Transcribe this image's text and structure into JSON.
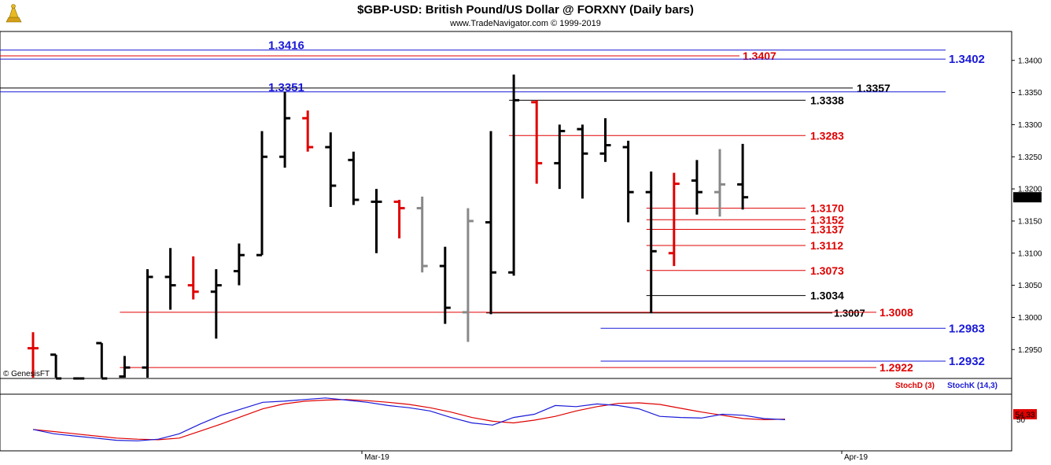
{
  "chart_data": {
    "type": "bar",
    "title": "$GBP-USD:  British Pound/US Dollar @ FORXNY  (Daily bars)",
    "subtitle": "www.TradeNavigator.com © 1999-2019",
    "watermark": "© GenesisFT",
    "x_labels": [
      "Mar-19",
      "Apr-19"
    ],
    "y_ticks": [
      "1.2950",
      "1.3000",
      "1.3050",
      "1.3100",
      "1.3150",
      "1.3200",
      "1.3250",
      "1.3300",
      "1.3350",
      "1.3400"
    ],
    "ylim": [
      1.2905,
      1.3445
    ],
    "last_price": "1.3187",
    "colors": {
      "up_close": "#000000",
      "red_bar": "#e00000",
      "gray_bar": "#888888",
      "blue_level": "#1a1ad8",
      "red_level": "#e00000",
      "black_level": "#000000"
    },
    "bars": [
      {
        "o": 1.2952,
        "h": 1.2977,
        "l": 1.2905,
        "c": 1.2952,
        "color": "red"
      },
      {
        "o": 1.2942,
        "h": 1.2942,
        "l": 1.2905,
        "c": 1.2905,
        "color": "black"
      },
      {
        "o": 1.2905,
        "h": 1.2905,
        "l": 1.2905,
        "c": 1.2905,
        "color": "black"
      },
      {
        "o": 1.296,
        "h": 1.296,
        "l": 1.2905,
        "c": 1.2905,
        "color": "black"
      },
      {
        "o": 1.2908,
        "h": 1.294,
        "l": 1.2905,
        "c": 1.2922,
        "color": "black"
      },
      {
        "o": 1.2922,
        "h": 1.3075,
        "l": 1.2905,
        "c": 1.3063,
        "color": "black"
      },
      {
        "o": 1.3063,
        "h": 1.3108,
        "l": 1.3012,
        "c": 1.305,
        "color": "black"
      },
      {
        "o": 1.305,
        "h": 1.3095,
        "l": 1.3028,
        "c": 1.304,
        "color": "red"
      },
      {
        "o": 1.304,
        "h": 1.3075,
        "l": 1.2967,
        "c": 1.305,
        "color": "black"
      },
      {
        "o": 1.3072,
        "h": 1.3115,
        "l": 1.305,
        "c": 1.3097,
        "color": "black"
      },
      {
        "o": 1.3097,
        "h": 1.329,
        "l": 1.3097,
        "c": 1.325,
        "color": "black"
      },
      {
        "o": 1.325,
        "h": 1.3351,
        "l": 1.3233,
        "c": 1.331,
        "color": "black"
      },
      {
        "o": 1.331,
        "h": 1.3322,
        "l": 1.3258,
        "c": 1.3265,
        "color": "red"
      },
      {
        "o": 1.3265,
        "h": 1.3288,
        "l": 1.3172,
        "c": 1.3205,
        "color": "black"
      },
      {
        "o": 1.3245,
        "h": 1.3258,
        "l": 1.3175,
        "c": 1.3183,
        "color": "black"
      },
      {
        "o": 1.318,
        "h": 1.32,
        "l": 1.31,
        "c": 1.318,
        "color": "black"
      },
      {
        "o": 1.318,
        "h": 1.3183,
        "l": 1.3123,
        "c": 1.317,
        "color": "red"
      },
      {
        "o": 1.317,
        "h": 1.3188,
        "l": 1.307,
        "c": 1.308,
        "color": "gray"
      },
      {
        "o": 1.308,
        "h": 1.311,
        "l": 1.299,
        "c": 1.3015,
        "color": "black"
      },
      {
        "o": 1.3008,
        "h": 1.317,
        "l": 1.2962,
        "c": 1.315,
        "color": "gray"
      },
      {
        "o": 1.3148,
        "h": 1.329,
        "l": 1.3005,
        "c": 1.307,
        "color": "black"
      },
      {
        "o": 1.307,
        "h": 1.3378,
        "l": 1.3065,
        "c": 1.3338,
        "color": "black"
      },
      {
        "o": 1.3335,
        "h": 1.3338,
        "l": 1.3208,
        "c": 1.324,
        "color": "red"
      },
      {
        "o": 1.324,
        "h": 1.33,
        "l": 1.32,
        "c": 1.329,
        "color": "black"
      },
      {
        "o": 1.3293,
        "h": 1.33,
        "l": 1.3185,
        "c": 1.3255,
        "color": "black"
      },
      {
        "o": 1.3255,
        "h": 1.331,
        "l": 1.3242,
        "c": 1.3268,
        "color": "black"
      },
      {
        "o": 1.3265,
        "h": 1.3275,
        "l": 1.3148,
        "c": 1.3195,
        "color": "black"
      },
      {
        "o": 1.3195,
        "h": 1.3227,
        "l": 1.3007,
        "c": 1.3103,
        "color": "black"
      },
      {
        "o": 1.31,
        "h": 1.3225,
        "l": 1.308,
        "c": 1.3208,
        "color": "red"
      },
      {
        "o": 1.3213,
        "h": 1.3245,
        "l": 1.316,
        "c": 1.3195,
        "color": "black"
      },
      {
        "o": 1.3195,
        "h": 1.3262,
        "l": 1.3157,
        "c": 1.3207,
        "color": "gray"
      },
      {
        "o": 1.3207,
        "h": 1.327,
        "l": 1.3168,
        "c": 1.3187,
        "color": "black"
      }
    ],
    "levels": [
      {
        "value": 1.3416,
        "label": "1.3416",
        "color": "blue",
        "from_bar": -1,
        "label_side": "left"
      },
      {
        "value": 1.3407,
        "label": "1.3407",
        "color": "red",
        "from_bar": -1,
        "label_side": "mid"
      },
      {
        "value": 1.3402,
        "label": "1.3402",
        "color": "blue",
        "from_bar": -1,
        "label_side": "right"
      },
      {
        "value": 1.3357,
        "label": "1.3357",
        "color": "black",
        "from_bar": -1,
        "label_side": "mid2"
      },
      {
        "value": 1.3351,
        "label": "1.3351",
        "color": "blue",
        "from_bar": -1,
        "label_side": "left"
      },
      {
        "value": 1.3338,
        "label": "1.3338",
        "color": "black",
        "from_bar": 21,
        "label_side": "end"
      },
      {
        "value": 1.3283,
        "label": "1.3283",
        "color": "red",
        "from_bar": 21,
        "label_side": "end"
      },
      {
        "value": 1.317,
        "label": "1.3170",
        "color": "red",
        "from_bar": 27,
        "label_side": "end"
      },
      {
        "value": 1.3152,
        "label": "1.3152",
        "color": "red",
        "from_bar": 27,
        "label_side": "end"
      },
      {
        "value": 1.3137,
        "label": "1.3137",
        "color": "red",
        "from_bar": 27,
        "label_side": "end"
      },
      {
        "value": 1.3112,
        "label": "1.3112",
        "color": "red",
        "from_bar": 27,
        "label_side": "end"
      },
      {
        "value": 1.3073,
        "label": "1.3073",
        "color": "red",
        "from_bar": 27,
        "label_side": "end"
      },
      {
        "value": 1.3034,
        "label": "1.3034",
        "color": "black",
        "from_bar": 27,
        "label_side": "end"
      },
      {
        "value": 1.3007,
        "label": "1.3007",
        "color": "black",
        "from_bar": 20,
        "label_side": "end"
      },
      {
        "value": 1.3008,
        "label": "1.3008",
        "color": "red",
        "from_bar": 4,
        "label_side": "far"
      },
      {
        "value": 1.2983,
        "label": "1.2983",
        "color": "blue",
        "from_bar": 25,
        "label_side": "right"
      },
      {
        "value": 1.2932,
        "label": "1.2932",
        "color": "blue",
        "from_bar": 25,
        "label_side": "right"
      },
      {
        "value": 1.2922,
        "label": "1.2922",
        "color": "red",
        "from_bar": 4,
        "label_side": "far"
      }
    ],
    "indicator": {
      "legend": [
        "StochD (3)",
        "StochK (14,3)"
      ],
      "last_value": "54.33",
      "stoch_d": [
        38,
        34,
        30,
        26,
        22,
        20,
        19,
        22,
        35,
        48,
        62,
        76,
        85,
        90,
        92,
        93,
        91,
        88,
        84,
        78,
        70,
        60,
        53,
        50,
        55,
        62,
        72,
        80,
        86,
        87,
        84,
        77,
        70,
        64,
        58,
        56,
        57
      ],
      "stoch_k": [
        38,
        30,
        26,
        22,
        18,
        17,
        20,
        30,
        48,
        64,
        76,
        88,
        90,
        93,
        96,
        92,
        88,
        82,
        78,
        72,
        60,
        50,
        46,
        60,
        66,
        82,
        80,
        85,
        82,
        76,
        62,
        60,
        59,
        66,
        64,
        58,
        56
      ]
    }
  }
}
